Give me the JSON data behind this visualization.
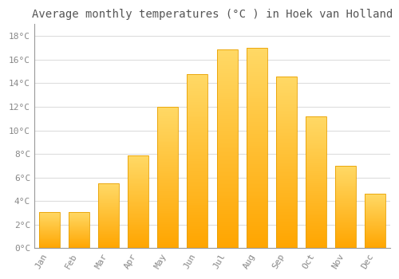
{
  "title": "Average monthly temperatures (°C ) in Hoek van Holland",
  "months": [
    "Jan",
    "Feb",
    "Mar",
    "Apr",
    "May",
    "Jun",
    "Jul",
    "Aug",
    "Sep",
    "Oct",
    "Nov",
    "Dec"
  ],
  "temperatures": [
    3.1,
    3.1,
    5.5,
    7.9,
    12.0,
    14.8,
    16.9,
    17.0,
    14.6,
    11.2,
    7.0,
    4.6
  ],
  "bar_color_top": "#FFD966",
  "bar_color_bottom": "#FFA500",
  "bar_edge_color": "#E8A000",
  "background_color": "#FFFFFF",
  "plot_bg_color": "#FFFFFF",
  "grid_color": "#DDDDDD",
  "ylim": [
    0,
    19
  ],
  "yticks": [
    0,
    2,
    4,
    6,
    8,
    10,
    12,
    14,
    16,
    18
  ],
  "ytick_labels": [
    "0°C",
    "2°C",
    "4°C",
    "6°C",
    "8°C",
    "10°C",
    "12°C",
    "14°C",
    "16°C",
    "18°C"
  ],
  "title_fontsize": 10,
  "tick_fontsize": 8,
  "title_color": "#555555",
  "tick_color": "#888888",
  "spine_color": "#999999",
  "bar_width": 0.7
}
